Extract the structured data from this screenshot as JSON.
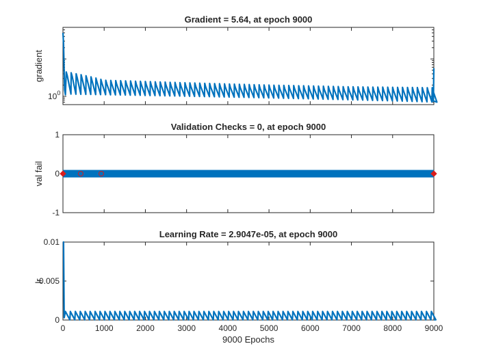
{
  "colors": {
    "series": "#0072BD",
    "marker": "#D81E1E",
    "axis": "#262626"
  },
  "chart_data": [
    {
      "type": "line",
      "title": "Gradient = 5.64, at epoch 9000",
      "ylabel": "gradient",
      "xlim": [
        0,
        9000
      ],
      "yscale": "log",
      "ylim": [
        0.6,
        70
      ],
      "ytick_labels": [
        {
          "value": 1,
          "base": "10",
          "exp": "0"
        }
      ],
      "series": [
        {
          "start_value": 50,
          "sawtooth_period": 120,
          "trend": [
            [
              80,
              4.5
            ],
            [
              1000,
              2.7
            ],
            [
              3000,
              2.3
            ],
            [
              5000,
              2.0
            ],
            [
              7000,
              1.8
            ],
            [
              9000,
              1.7
            ]
          ],
          "trough_ratio": 0.45,
          "end_value": 5.64
        }
      ]
    },
    {
      "type": "line",
      "title": "Validation Checks = 0, at epoch 9000",
      "ylabel": "val fail",
      "xlim": [
        0,
        9000
      ],
      "ylim": [
        -1,
        1
      ],
      "yticks": [
        -1,
        0,
        1
      ],
      "series": [
        {
          "constant_value": 0
        }
      ],
      "markers": [
        {
          "x": 0,
          "y": 0,
          "symbol": "diamond"
        },
        {
          "x": 430,
          "y": 0,
          "symbol": "circle"
        },
        {
          "x": 930,
          "y": 0,
          "symbol": "circle"
        },
        {
          "x": 9000,
          "y": 0,
          "symbol": "diamond"
        }
      ]
    },
    {
      "type": "line",
      "title": "Learning Rate = 2.9047e-05, at epoch 9000",
      "ylabel": "lr",
      "xlabel": "9000 Epochs",
      "xlim": [
        0,
        9000
      ],
      "ylim": [
        0,
        0.01
      ],
      "yticks": [
        0,
        0.005,
        0.01
      ],
      "xticks": [
        0,
        1000,
        2000,
        3000,
        4000,
        5000,
        6000,
        7000,
        8000,
        9000
      ],
      "series": [
        {
          "start_value": 0.01,
          "sawtooth_period": 120,
          "sawtooth_peak": 0.0011,
          "end_value": 2.9047e-05
        }
      ]
    }
  ]
}
